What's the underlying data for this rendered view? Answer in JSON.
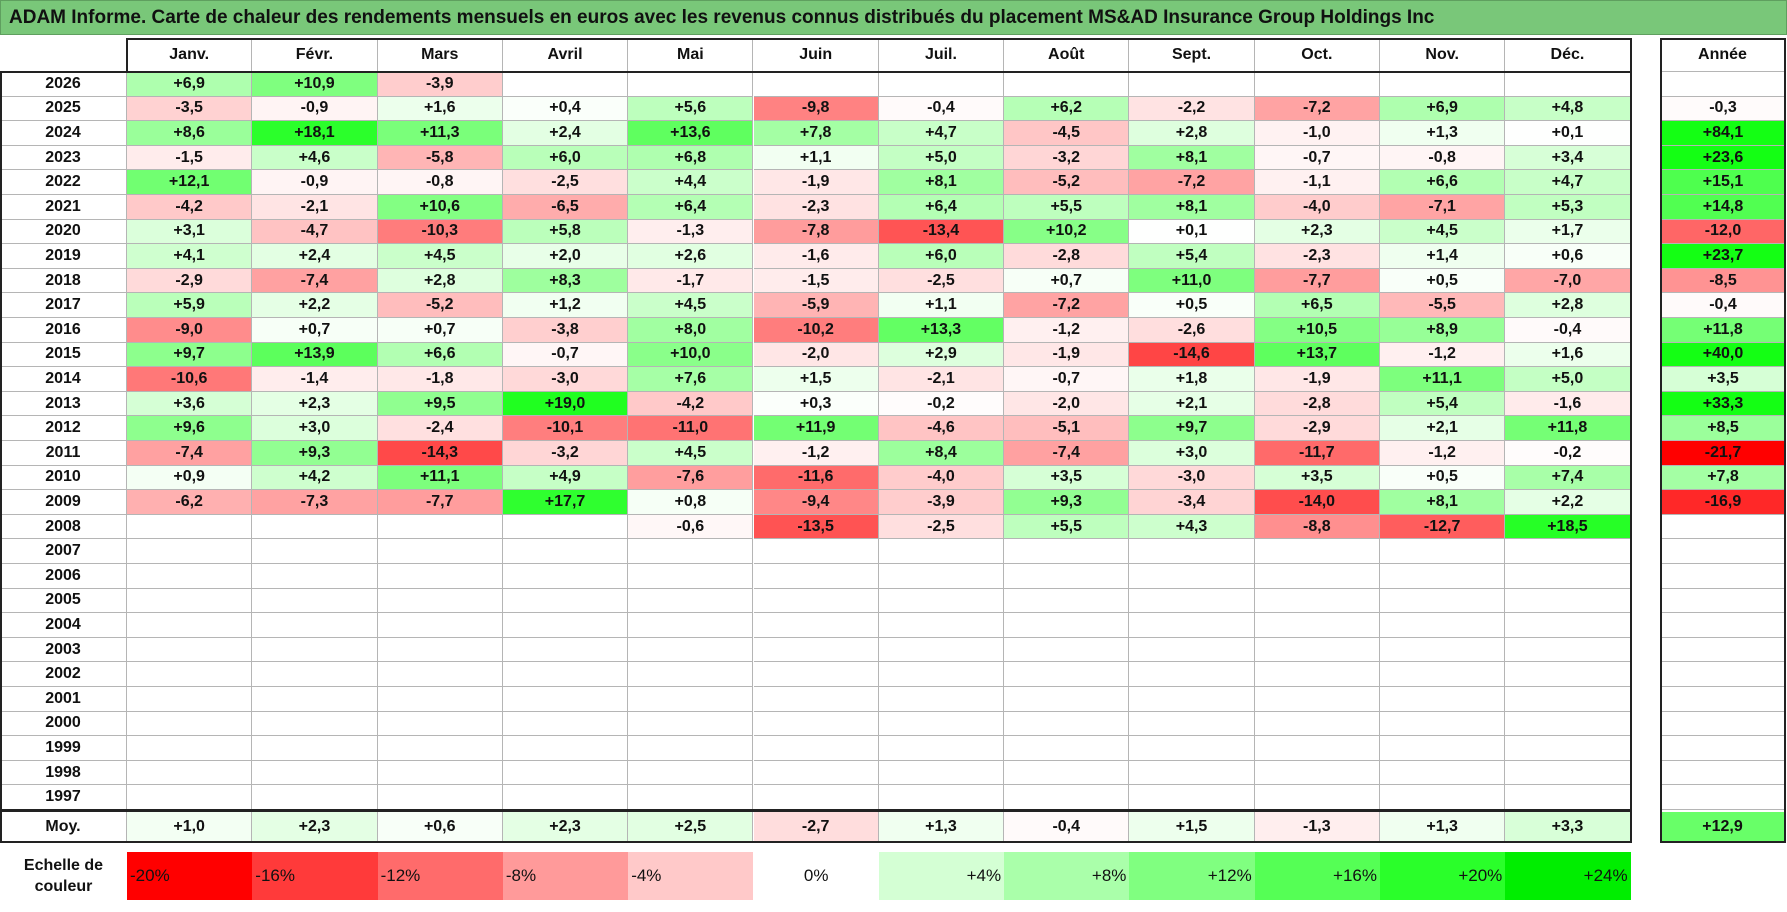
{
  "title": "ADAM Informe. Carte de chaleur des rendements mensuels en euros avec les revenus connus distribués du placement MS&AD Insurance Group Holdings Inc",
  "chart_data": {
    "type": "heatmap",
    "title": "ADAM Informe. Carte de chaleur des rendements mensuels en euros avec les revenus connus distribués du placement MS&AD Insurance Group Holdings Inc",
    "columns": [
      "Janv.",
      "Févr.",
      "Mars",
      "Avril",
      "Mai",
      "Juin",
      "Juil.",
      "Août",
      "Sept.",
      "Oct.",
      "Nov.",
      "Déc."
    ],
    "year_header": "Année",
    "rows": [
      {
        "year": "2026",
        "values": [
          6.9,
          10.9,
          -3.9,
          null,
          null,
          null,
          null,
          null,
          null,
          null,
          null,
          null
        ],
        "annual": null
      },
      {
        "year": "2025",
        "values": [
          -3.5,
          -0.9,
          1.6,
          0.4,
          5.6,
          -9.8,
          -0.4,
          6.2,
          -2.2,
          -7.2,
          6.9,
          4.8
        ],
        "annual": -0.3
      },
      {
        "year": "2024",
        "values": [
          8.6,
          18.1,
          11.3,
          2.4,
          13.6,
          7.8,
          4.7,
          -4.5,
          2.8,
          -1.0,
          1.3,
          0.1
        ],
        "annual": 84.1
      },
      {
        "year": "2023",
        "values": [
          -1.5,
          4.6,
          -5.8,
          6.0,
          6.8,
          1.1,
          5.0,
          -3.2,
          8.1,
          -0.7,
          -0.8,
          3.4
        ],
        "annual": 23.6
      },
      {
        "year": "2022",
        "values": [
          12.1,
          -0.9,
          -0.8,
          -2.5,
          4.4,
          -1.9,
          8.1,
          -5.2,
          -7.2,
          -1.1,
          6.6,
          4.7
        ],
        "annual": 15.1
      },
      {
        "year": "2021",
        "values": [
          -4.2,
          -2.1,
          10.6,
          -6.5,
          6.4,
          -2.3,
          6.4,
          5.5,
          8.1,
          -4.0,
          -7.1,
          5.3
        ],
        "annual": 14.8
      },
      {
        "year": "2020",
        "values": [
          3.1,
          -4.7,
          -10.3,
          5.8,
          -1.3,
          -7.8,
          -13.4,
          10.2,
          0.1,
          2.3,
          4.5,
          1.7
        ],
        "annual": -12.0
      },
      {
        "year": "2019",
        "values": [
          4.1,
          2.4,
          4.5,
          2.0,
          2.6,
          -1.6,
          6.0,
          -2.8,
          5.4,
          -2.3,
          1.4,
          0.6
        ],
        "annual": 23.7
      },
      {
        "year": "2018",
        "values": [
          -2.9,
          -7.4,
          2.8,
          8.3,
          -1.7,
          -1.5,
          -2.5,
          0.7,
          11.0,
          -7.7,
          0.5,
          -7.0
        ],
        "annual": -8.5
      },
      {
        "year": "2017",
        "values": [
          5.9,
          2.2,
          -5.2,
          1.2,
          4.5,
          -5.9,
          1.1,
          -7.2,
          0.5,
          6.5,
          -5.5,
          2.8
        ],
        "annual": -0.4
      },
      {
        "year": "2016",
        "values": [
          -9.0,
          0.7,
          0.7,
          -3.8,
          8.0,
          -10.2,
          13.3,
          -1.2,
          -2.6,
          10.5,
          8.9,
          -0.4
        ],
        "annual": 11.8
      },
      {
        "year": "2015",
        "values": [
          9.7,
          13.9,
          6.6,
          -0.7,
          10.0,
          -2.0,
          2.9,
          -1.9,
          -14.6,
          13.7,
          -1.2,
          1.6
        ],
        "annual": 40.0
      },
      {
        "year": "2014",
        "values": [
          -10.6,
          -1.4,
          -1.8,
          -3.0,
          7.6,
          1.5,
          -2.1,
          -0.7,
          1.8,
          -1.9,
          11.1,
          5.0
        ],
        "annual": 3.5
      },
      {
        "year": "2013",
        "values": [
          3.6,
          2.3,
          9.5,
          19.0,
          -4.2,
          0.3,
          -0.2,
          -2.0,
          2.1,
          -2.8,
          5.4,
          -1.6
        ],
        "annual": 33.3
      },
      {
        "year": "2012",
        "values": [
          9.6,
          3.0,
          -2.4,
          -10.1,
          -11.0,
          11.9,
          -4.6,
          -5.1,
          9.7,
          -2.9,
          2.1,
          11.8
        ],
        "annual": 8.5
      },
      {
        "year": "2011",
        "values": [
          -7.4,
          9.3,
          -14.3,
          -3.2,
          4.5,
          -1.2,
          8.4,
          -7.4,
          3.0,
          -11.7,
          -1.2,
          -0.2
        ],
        "annual": -21.7
      },
      {
        "year": "2010",
        "values": [
          0.9,
          4.2,
          11.1,
          4.9,
          -7.6,
          -11.6,
          -4.0,
          3.5,
          -3.0,
          3.5,
          0.5,
          7.4
        ],
        "annual": 7.8
      },
      {
        "year": "2009",
        "values": [
          -6.2,
          -7.3,
          -7.7,
          17.7,
          0.8,
          -9.4,
          -3.9,
          9.3,
          -3.4,
          -14.0,
          8.1,
          2.2
        ],
        "annual": -16.9
      },
      {
        "year": "2008",
        "values": [
          null,
          null,
          null,
          null,
          -0.6,
          -13.5,
          -2.5,
          5.5,
          4.3,
          -8.8,
          -12.7,
          18.5
        ],
        "annual": null
      },
      {
        "year": "2007",
        "values": [
          null,
          null,
          null,
          null,
          null,
          null,
          null,
          null,
          null,
          null,
          null,
          null
        ],
        "annual": null
      },
      {
        "year": "2006",
        "values": [
          null,
          null,
          null,
          null,
          null,
          null,
          null,
          null,
          null,
          null,
          null,
          null
        ],
        "annual": null
      },
      {
        "year": "2005",
        "values": [
          null,
          null,
          null,
          null,
          null,
          null,
          null,
          null,
          null,
          null,
          null,
          null
        ],
        "annual": null
      },
      {
        "year": "2004",
        "values": [
          null,
          null,
          null,
          null,
          null,
          null,
          null,
          null,
          null,
          null,
          null,
          null
        ],
        "annual": null
      },
      {
        "year": "2003",
        "values": [
          null,
          null,
          null,
          null,
          null,
          null,
          null,
          null,
          null,
          null,
          null,
          null
        ],
        "annual": null
      },
      {
        "year": "2002",
        "values": [
          null,
          null,
          null,
          null,
          null,
          null,
          null,
          null,
          null,
          null,
          null,
          null
        ],
        "annual": null
      },
      {
        "year": "2001",
        "values": [
          null,
          null,
          null,
          null,
          null,
          null,
          null,
          null,
          null,
          null,
          null,
          null
        ],
        "annual": null
      },
      {
        "year": "2000",
        "values": [
          null,
          null,
          null,
          null,
          null,
          null,
          null,
          null,
          null,
          null,
          null,
          null
        ],
        "annual": null
      },
      {
        "year": "1999",
        "values": [
          null,
          null,
          null,
          null,
          null,
          null,
          null,
          null,
          null,
          null,
          null,
          null
        ],
        "annual": null
      },
      {
        "year": "1998",
        "values": [
          null,
          null,
          null,
          null,
          null,
          null,
          null,
          null,
          null,
          null,
          null,
          null
        ],
        "annual": null
      },
      {
        "year": "1997",
        "values": [
          null,
          null,
          null,
          null,
          null,
          null,
          null,
          null,
          null,
          null,
          null,
          null
        ],
        "annual": null
      }
    ],
    "average": {
      "label": "Moy.",
      "values": [
        1.0,
        2.3,
        0.6,
        2.3,
        2.5,
        -2.7,
        1.3,
        -0.4,
        1.5,
        -1.3,
        1.3,
        3.3
      ],
      "annual": 12.9
    },
    "color_scale": {
      "label": "Echelle de couleur",
      "stops": [
        {
          "label": "-20%",
          "value": -20,
          "color": "#ff0000"
        },
        {
          "label": "-16%",
          "value": -16,
          "color": "#ff3a3a"
        },
        {
          "label": "-12%",
          "value": -12,
          "color": "#ff6b6b"
        },
        {
          "label": "-8%",
          "value": -8,
          "color": "#ff9a9a"
        },
        {
          "label": "-4%",
          "value": -4,
          "color": "#ffc9c9"
        },
        {
          "label": "0%",
          "value": 0,
          "color": "#ffffff"
        },
        {
          "label": "+4%",
          "value": 4,
          "color": "#d4ffd4"
        },
        {
          "label": "+8%",
          "value": 8,
          "color": "#aaffaa"
        },
        {
          "label": "+12%",
          "value": 12,
          "color": "#80ff80"
        },
        {
          "label": "+16%",
          "value": 16,
          "color": "#55ff55"
        },
        {
          "label": "+20%",
          "value": 20,
          "color": "#2aff2a"
        },
        {
          "label": "+24%",
          "value": 24,
          "color": "#00ee00"
        }
      ]
    }
  }
}
